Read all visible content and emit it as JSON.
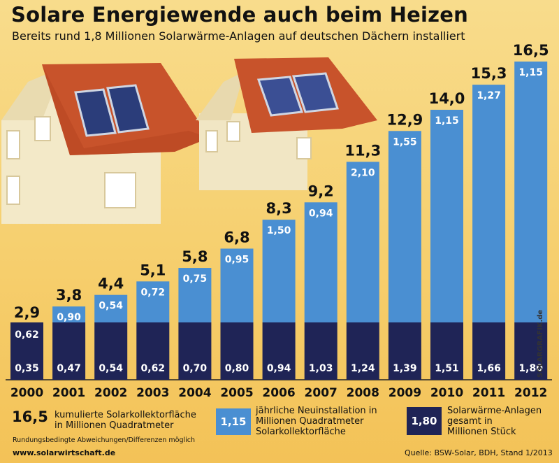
{
  "header": {
    "title": "Solare Energiewende auch beim Heizen",
    "subtitle": "Bereits rund 1,8 Millionen Solarwärme-Anlagen auf deutschen Dächern installiert"
  },
  "chart_data": {
    "type": "bar",
    "stacked": true,
    "categories": [
      "2000",
      "2001",
      "2002",
      "2003",
      "2004",
      "2005",
      "2006",
      "2007",
      "2008",
      "2009",
      "2010",
      "2011",
      "2012"
    ],
    "series": [
      {
        "name": "",
        "labels": [
          "2,9",
          "3,8",
          "4,4",
          "5,1",
          "5,8",
          "6,8",
          "8,3",
          "9,2",
          "11,3",
          "12,9",
          "14,0",
          "15,3",
          "16,5"
        ],
        "values": [
          2.9,
          3.8,
          4.4,
          5.1,
          5.8,
          6.8,
          8.3,
          9.2,
          11.3,
          12.9,
          14.0,
          15.3,
          16.5
        ]
      },
      {
        "name": "",
        "labels": [
          "0,62",
          "0,90",
          "0,54",
          "0,72",
          "0,75",
          "0,95",
          "1,50",
          "0,94",
          "2,10",
          "1,55",
          "1,15",
          "1,27",
          "1,15"
        ],
        "values": [
          0.62,
          0.9,
          0.54,
          0.72,
          0.75,
          0.95,
          1.5,
          0.94,
          2.1,
          1.55,
          1.15,
          1.27,
          1.15
        ]
      },
      {
        "name": "",
        "labels": [
          "0,35",
          "0,47",
          "0,54",
          "0,62",
          "0,70",
          "0,80",
          "0,94",
          "1,03",
          "1,24",
          "1,39",
          "1,51",
          "1,66",
          "1,80"
        ],
        "values": [
          0.35,
          0.47,
          0.54,
          0.62,
          0.7,
          0.8,
          0.94,
          1.03,
          1.24,
          1.39,
          1.51,
          1.66,
          1.8
        ]
      }
    ],
    "colors": {
      "top": "#4a8fd2",
      "bottom": "#1f2456",
      "value_label": "#ffffff"
    },
    "grid": false,
    "legend": "bottom"
  },
  "legend": {
    "total_value": "16,5",
    "total_text": "kumulierte Solarkollektorfläche\nin Millionen Quadratmeter",
    "new_value": "1,15",
    "new_text": "jährliche Neuinstallation in\nMillionen Quadratmeter\nSolarkollektorfläche",
    "count_value": "1,80",
    "count_text": "Solarwärme-Anlagen\ngesamt in\nMillionen Stück"
  },
  "footer": {
    "note": "Rundungsbedingte Abweichungen/Differenzen möglich",
    "website": "www.solarwirtschaft.de",
    "source": "Quelle: BSW-Solar, BDH, Stand 1/2013",
    "watermark": "SOLARGRAFIK.de"
  }
}
